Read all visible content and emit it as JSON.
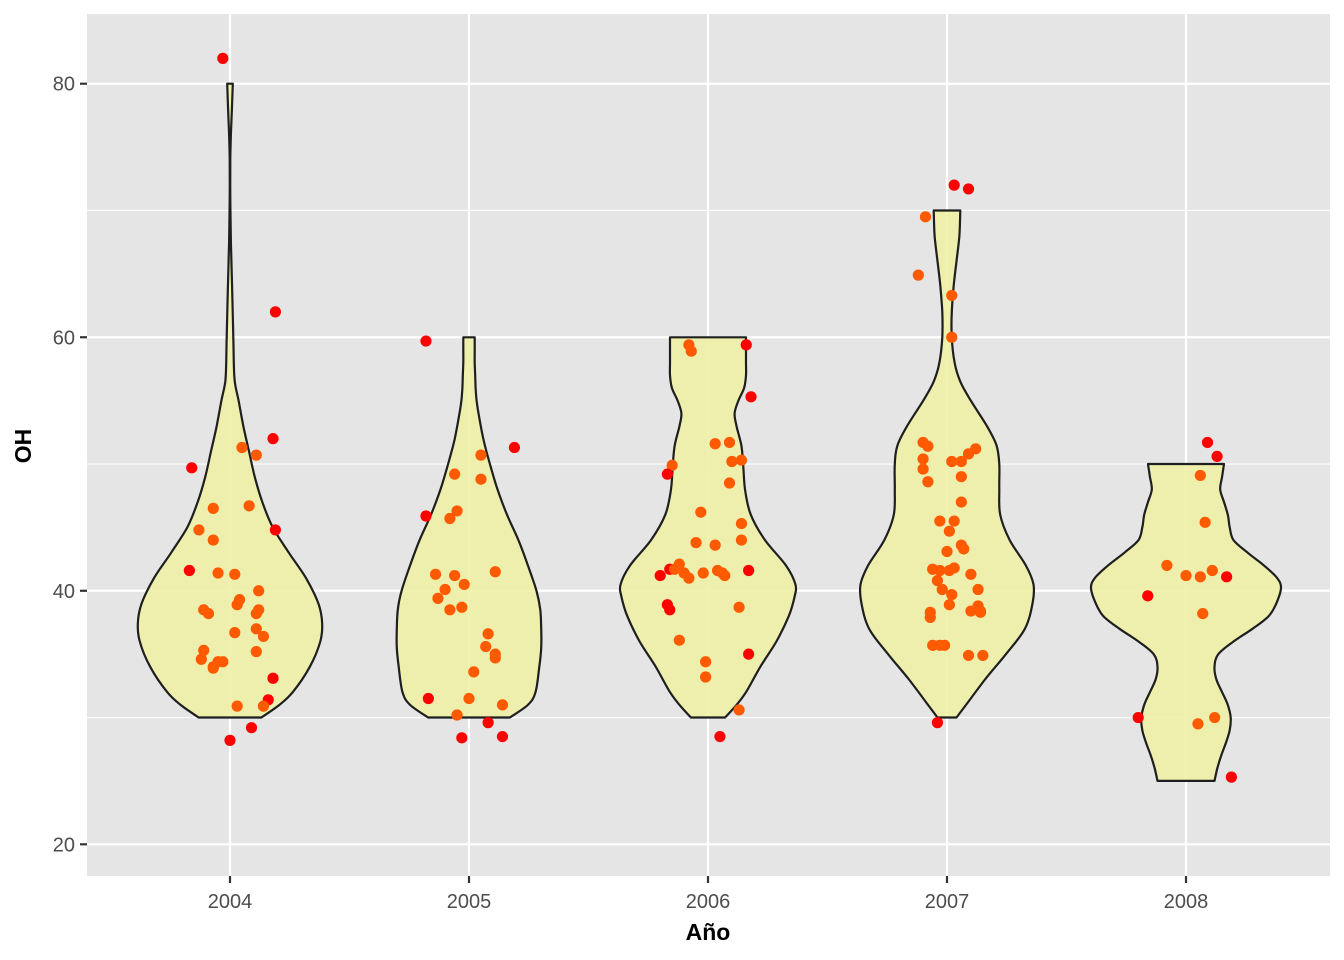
{
  "chart_data": {
    "type": "violin",
    "title": "",
    "xlabel": "Año",
    "ylabel": "OH",
    "categories": [
      "2004",
      "2005",
      "2006",
      "2007",
      "2008"
    ],
    "ylim": [
      17.5,
      85.5
    ],
    "y_ticks": [
      20,
      40,
      60,
      80
    ],
    "grid": true,
    "legend": "none",
    "colors": {
      "panel": "#e5e5e5",
      "grid": "#ffffff",
      "violin_fill": "#f0f0a8",
      "violin_stroke": "#1f1f1f",
      "point_low": "#ff5a00",
      "point_high": "#ff0000"
    },
    "violins": [
      {
        "category": "2004",
        "min": 30,
        "max": 80,
        "profile": [
          [
            30,
            0.33
          ],
          [
            31,
            0.52
          ],
          [
            32,
            0.66
          ],
          [
            34,
            0.84
          ],
          [
            36,
            0.95
          ],
          [
            37.5,
            0.97
          ],
          [
            39,
            0.93
          ],
          [
            41,
            0.8
          ],
          [
            43,
            0.62
          ],
          [
            45,
            0.45
          ],
          [
            47,
            0.34
          ],
          [
            49,
            0.26
          ],
          [
            51,
            0.2
          ],
          [
            53,
            0.14
          ],
          [
            55,
            0.09
          ],
          [
            56.5,
            0.05
          ],
          [
            58,
            0.04
          ],
          [
            60,
            0.035
          ],
          [
            63,
            0.025
          ],
          [
            66,
            0.015
          ],
          [
            68,
            0.008
          ],
          [
            71,
            0.003
          ],
          [
            74,
            0.003
          ],
          [
            76,
            0.01
          ],
          [
            78,
            0.02
          ],
          [
            80,
            0.03
          ]
        ]
      },
      {
        "category": "2005",
        "min": 30,
        "max": 60,
        "profile": [
          [
            30,
            0.43
          ],
          [
            31,
            0.62
          ],
          [
            32,
            0.7
          ],
          [
            34,
            0.74
          ],
          [
            35.5,
            0.76
          ],
          [
            37,
            0.76
          ],
          [
            38.5,
            0.75
          ],
          [
            40,
            0.71
          ],
          [
            42,
            0.62
          ],
          [
            44,
            0.52
          ],
          [
            46,
            0.4
          ],
          [
            48,
            0.3
          ],
          [
            50,
            0.22
          ],
          [
            52,
            0.15
          ],
          [
            54,
            0.1
          ],
          [
            55,
            0.08
          ],
          [
            56,
            0.07
          ],
          [
            57,
            0.065
          ],
          [
            58,
            0.06
          ],
          [
            59,
            0.06
          ],
          [
            60,
            0.06
          ]
        ]
      },
      {
        "category": "2006",
        "min": 30,
        "max": 60,
        "profile": [
          [
            30,
            0.18
          ],
          [
            31,
            0.3
          ],
          [
            32,
            0.4
          ],
          [
            34,
            0.55
          ],
          [
            36,
            0.72
          ],
          [
            38,
            0.85
          ],
          [
            39.5,
            0.91
          ],
          [
            40.5,
            0.92
          ],
          [
            42,
            0.82
          ],
          [
            44,
            0.6
          ],
          [
            46,
            0.45
          ],
          [
            48,
            0.39
          ],
          [
            50,
            0.37
          ],
          [
            51.5,
            0.35
          ],
          [
            53,
            0.3
          ],
          [
            54,
            0.28
          ],
          [
            55,
            0.32
          ],
          [
            56,
            0.38
          ],
          [
            57,
            0.4
          ],
          [
            58,
            0.4
          ],
          [
            60,
            0.4
          ]
        ]
      },
      {
        "category": "2007",
        "min": 30,
        "max": 70,
        "profile": [
          [
            30,
            0.1
          ],
          [
            31,
            0.2
          ],
          [
            33,
            0.4
          ],
          [
            35,
            0.62
          ],
          [
            37,
            0.82
          ],
          [
            39,
            0.9
          ],
          [
            40.5,
            0.91
          ],
          [
            42,
            0.83
          ],
          [
            44,
            0.66
          ],
          [
            46,
            0.56
          ],
          [
            48,
            0.55
          ],
          [
            50,
            0.55
          ],
          [
            51.5,
            0.52
          ],
          [
            53,
            0.42
          ],
          [
            55,
            0.25
          ],
          [
            56.5,
            0.14
          ],
          [
            58,
            0.08
          ],
          [
            60,
            0.05
          ],
          [
            62,
            0.05
          ],
          [
            64,
            0.07
          ],
          [
            66,
            0.1
          ],
          [
            68,
            0.13
          ],
          [
            70,
            0.14
          ]
        ]
      },
      {
        "category": "2008",
        "min": 25,
        "max": 50,
        "profile": [
          [
            25,
            0.3
          ],
          [
            26,
            0.33
          ],
          [
            27,
            0.37
          ],
          [
            28,
            0.42
          ],
          [
            29,
            0.46
          ],
          [
            30,
            0.47
          ],
          [
            31,
            0.44
          ],
          [
            32,
            0.38
          ],
          [
            33,
            0.32
          ],
          [
            34,
            0.3
          ],
          [
            35,
            0.34
          ],
          [
            36,
            0.5
          ],
          [
            37,
            0.7
          ],
          [
            38,
            0.87
          ],
          [
            39,
            0.95
          ],
          [
            40.2,
            1.0
          ],
          [
            41,
            0.96
          ],
          [
            42,
            0.82
          ],
          [
            43,
            0.65
          ],
          [
            44,
            0.5
          ],
          [
            45,
            0.46
          ],
          [
            46,
            0.44
          ],
          [
            47,
            0.4
          ],
          [
            48,
            0.36
          ],
          [
            49,
            0.38
          ],
          [
            50,
            0.4
          ]
        ]
      }
    ],
    "points": [
      {
        "category": "2004",
        "values": [
          [
            -0.03,
            82
          ],
          [
            0.19,
            62
          ],
          [
            0.18,
            52
          ],
          [
            -0.16,
            49.7
          ],
          [
            0.05,
            51.3
          ],
          [
            0.11,
            50.7
          ],
          [
            -0.07,
            46.5
          ],
          [
            0.08,
            46.7
          ],
          [
            0.19,
            44.8
          ],
          [
            -0.13,
            44.8
          ],
          [
            -0.07,
            44
          ],
          [
            -0.17,
            41.6
          ],
          [
            -0.05,
            41.4
          ],
          [
            0.02,
            41.3
          ],
          [
            0.12,
            40
          ],
          [
            0.04,
            39.3
          ],
          [
            0.03,
            38.9
          ],
          [
            -0.11,
            38.5
          ],
          [
            -0.09,
            38.2
          ],
          [
            0.12,
            38.5
          ],
          [
            0.11,
            38.2
          ],
          [
            0.11,
            37
          ],
          [
            0.02,
            36.7
          ],
          [
            0.14,
            36.4
          ],
          [
            -0.11,
            35.3
          ],
          [
            0.11,
            35.2
          ],
          [
            -0.12,
            34.6
          ],
          [
            -0.07,
            34
          ],
          [
            -0.03,
            34.4
          ],
          [
            -0.05,
            34.4
          ],
          [
            -0.07,
            33.9
          ],
          [
            0.18,
            33.1
          ],
          [
            0.16,
            31.4
          ],
          [
            0.14,
            30.9
          ],
          [
            0.03,
            30.9
          ],
          [
            0.09,
            29.2
          ],
          [
            0.0,
            28.2
          ]
        ]
      },
      {
        "category": "2005",
        "values": [
          [
            -0.18,
            59.7
          ],
          [
            0.19,
            51.3
          ],
          [
            0.05,
            50.7
          ],
          [
            -0.06,
            49.2
          ],
          [
            0.05,
            48.8
          ],
          [
            -0.18,
            45.9
          ],
          [
            -0.08,
            45.7
          ],
          [
            -0.05,
            46.3
          ],
          [
            0.11,
            41.5
          ],
          [
            -0.14,
            41.3
          ],
          [
            -0.06,
            41.2
          ],
          [
            -0.02,
            40.5
          ],
          [
            -0.1,
            40.1
          ],
          [
            -0.13,
            39.4
          ],
          [
            -0.08,
            38.5
          ],
          [
            -0.03,
            38.7
          ],
          [
            0.08,
            36.6
          ],
          [
            0.07,
            35.6
          ],
          [
            0.11,
            35
          ],
          [
            0.11,
            34.7
          ],
          [
            0.02,
            33.6
          ],
          [
            -0.17,
            31.5
          ],
          [
            0.0,
            31.5
          ],
          [
            0.14,
            31
          ],
          [
            -0.05,
            30.2
          ],
          [
            0.08,
            29.6
          ],
          [
            -0.03,
            28.4
          ],
          [
            0.14,
            28.5
          ]
        ]
      },
      {
        "category": "2006",
        "values": [
          [
            -0.08,
            59.4
          ],
          [
            -0.07,
            58.9
          ],
          [
            0.16,
            59.4
          ],
          [
            0.18,
            55.3
          ],
          [
            0.03,
            51.6
          ],
          [
            0.09,
            51.7
          ],
          [
            0.1,
            50.2
          ],
          [
            0.14,
            50.3
          ],
          [
            -0.15,
            49.9
          ],
          [
            -0.17,
            49.2
          ],
          [
            0.09,
            48.5
          ],
          [
            -0.03,
            46.2
          ],
          [
            0.14,
            45.3
          ],
          [
            0.14,
            44
          ],
          [
            0.03,
            43.6
          ],
          [
            -0.05,
            43.8
          ],
          [
            -0.12,
            42.1
          ],
          [
            -0.16,
            41.7
          ],
          [
            -0.14,
            41.7
          ],
          [
            0.04,
            41.6
          ],
          [
            -0.1,
            41.4
          ],
          [
            0.06,
            41.4
          ],
          [
            -0.02,
            41.4
          ],
          [
            0.07,
            41.2
          ],
          [
            0.17,
            41.6
          ],
          [
            -0.08,
            41
          ],
          [
            -0.2,
            41.2
          ],
          [
            -0.17,
            38.9
          ],
          [
            -0.16,
            38.5
          ],
          [
            0.13,
            38.7
          ],
          [
            -0.12,
            36.1
          ],
          [
            -0.01,
            34.4
          ],
          [
            0.17,
            35
          ],
          [
            -0.01,
            33.2
          ],
          [
            0.13,
            30.6
          ],
          [
            0.05,
            28.5
          ]
        ]
      },
      {
        "category": "2007",
        "values": [
          [
            0.09,
            71.7
          ],
          [
            0.03,
            72
          ],
          [
            -0.09,
            69.5
          ],
          [
            -0.12,
            64.9
          ],
          [
            0.02,
            63.3
          ],
          [
            0.02,
            60
          ],
          [
            -0.1,
            51.7
          ],
          [
            -0.08,
            51.4
          ],
          [
            0.12,
            51.2
          ],
          [
            0.09,
            50.8
          ],
          [
            0.06,
            50.2
          ],
          [
            -0.1,
            50.4
          ],
          [
            -0.1,
            49.6
          ],
          [
            0.02,
            50.2
          ],
          [
            0.06,
            49
          ],
          [
            -0.08,
            48.6
          ],
          [
            0.06,
            47
          ],
          [
            -0.03,
            45.5
          ],
          [
            0.03,
            45.5
          ],
          [
            0.01,
            44.7
          ],
          [
            0.06,
            43.6
          ],
          [
            0.07,
            43.3
          ],
          [
            0.0,
            43.1
          ],
          [
            -0.06,
            41.7
          ],
          [
            0.03,
            41.8
          ],
          [
            -0.03,
            41.6
          ],
          [
            0.01,
            41.6
          ],
          [
            0.1,
            41.3
          ],
          [
            -0.04,
            40.8
          ],
          [
            0.13,
            40.1
          ],
          [
            -0.02,
            40.1
          ],
          [
            0.02,
            39.7
          ],
          [
            -0.07,
            38.3
          ],
          [
            0.01,
            38.9
          ],
          [
            -0.07,
            37.9
          ],
          [
            0.13,
            38.8
          ],
          [
            0.14,
            38.3
          ],
          [
            0.1,
            38.4
          ],
          [
            0.14,
            38.4
          ],
          [
            -0.03,
            35.7
          ],
          [
            -0.06,
            35.7
          ],
          [
            -0.01,
            35.7
          ],
          [
            0.09,
            34.9
          ],
          [
            0.15,
            34.9
          ],
          [
            -0.04,
            29.6
          ]
        ]
      },
      {
        "category": "2008",
        "values": [
          [
            0.09,
            51.7
          ],
          [
            0.13,
            50.6
          ],
          [
            0.06,
            49.1
          ],
          [
            0.08,
            45.4
          ],
          [
            -0.08,
            42
          ],
          [
            0.0,
            41.2
          ],
          [
            0.06,
            41.1
          ],
          [
            0.11,
            41.6
          ],
          [
            0.17,
            41.1
          ],
          [
            0.07,
            38.2
          ],
          [
            -0.16,
            39.6
          ],
          [
            -0.2,
            30
          ],
          [
            0.05,
            29.5
          ],
          [
            0.12,
            30
          ],
          [
            0.19,
            25.3
          ]
        ]
      }
    ]
  }
}
